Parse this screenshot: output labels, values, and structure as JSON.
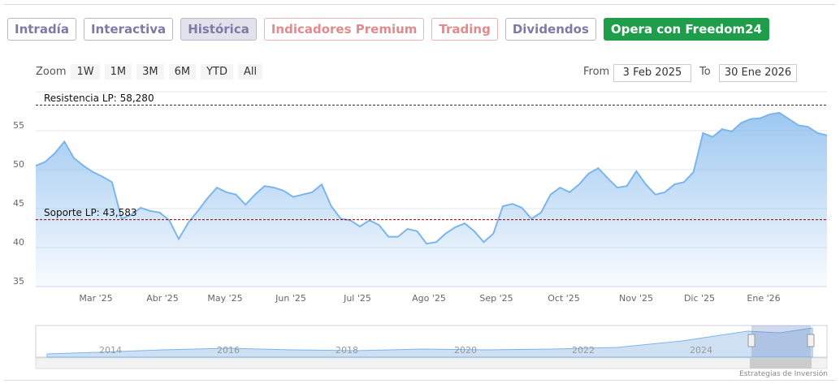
{
  "tabs": [
    "Intradía",
    "Interactiva",
    "Histórica",
    "Indicadores Premium",
    "Trading",
    "Dividendos",
    "Opera con Freedom24"
  ],
  "zoom": {
    "label": "Zoom",
    "buttons": [
      "1W",
      "1M",
      "3M",
      "6M",
      "YTD",
      "All"
    ]
  },
  "range": {
    "from_label": "From",
    "from": "3 Feb 2025",
    "to_label": "To",
    "to": "30 Ene 2026"
  },
  "chart_data": {
    "type": "area",
    "series": [
      {
        "color": "#7cb5ec",
        "values": [
          50.5,
          51.0,
          52.1,
          53.6,
          51.5,
          50.5,
          49.7,
          49.1,
          48.4,
          43.7,
          44.2,
          45.1,
          44.7,
          44.5,
          43.5,
          41.1,
          43.2,
          44.7,
          46.3,
          47.7,
          47.1,
          46.8,
          45.5,
          46.8,
          47.9,
          47.7,
          47.3,
          46.5,
          46.8,
          47.1,
          48.1,
          45.3,
          43.7,
          43.5,
          42.7,
          43.5,
          42.9,
          41.4,
          41.4,
          42.4,
          42.1,
          40.5,
          40.7,
          41.8,
          42.6,
          43.1,
          42.1,
          40.7,
          41.8,
          45.3,
          45.6,
          45.1,
          43.7,
          44.5,
          46.8,
          47.7,
          47.1,
          48.1,
          49.5,
          50.2,
          48.9,
          47.7,
          47.9,
          49.8,
          48.1,
          46.8,
          47.1,
          48.1,
          48.4,
          49.7,
          54.7,
          54.2,
          55.2,
          54.9,
          56.0,
          56.5,
          56.6,
          57.1,
          57.3,
          56.5,
          55.7,
          55.5,
          54.7,
          54.4
        ]
      }
    ],
    "ylim": [
      35,
      60
    ],
    "yticks": [
      35,
      40,
      45,
      50,
      55
    ],
    "x_labels": [
      "Mar '25",
      "Abr '25",
      "May '25",
      "Jun '25",
      "Jul '25",
      "Ago '25",
      "Sep '25",
      "Oct '25",
      "Nov '25",
      "Dic '25",
      "Ene '26"
    ],
    "annotations": [
      {
        "label": "Resistencia LP: 58,280",
        "value": 58.28,
        "color": "#333333"
      },
      {
        "label": "Soporte LP: 43,583",
        "value": 43.583,
        "color": "#8b0000"
      }
    ]
  },
  "navigator": {
    "labels": [
      "2014",
      "2016",
      "2018",
      "2020",
      "2022",
      "2024"
    ]
  },
  "credits": "Estrategias de Inversión"
}
